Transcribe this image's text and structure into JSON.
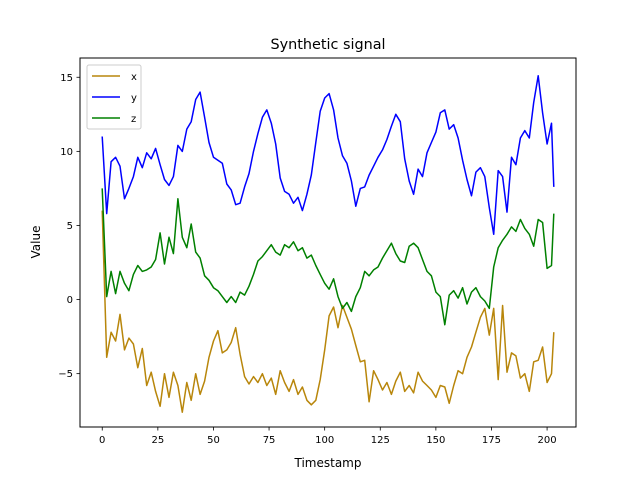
{
  "chart_data": {
    "type": "line",
    "title": "Synthetic signal",
    "xlabel": "Timestamp",
    "ylabel": "Value",
    "xlim": [
      -10,
      213
    ],
    "ylim": [
      -8.6,
      16.3
    ],
    "xticks": [
      0,
      25,
      50,
      75,
      100,
      125,
      150,
      175,
      200
    ],
    "yticks": [
      -5,
      0,
      5,
      10,
      15
    ],
    "grid": false,
    "legend": "upper-left",
    "series": [
      {
        "name": "x",
        "color": "#b8860b",
        "x": [
          0,
          2,
          4,
          6,
          8,
          10,
          12,
          14,
          16,
          18,
          20,
          22,
          24,
          26,
          28,
          30,
          32,
          34,
          36,
          38,
          40,
          42,
          44,
          46,
          48,
          50,
          52,
          54,
          56,
          58,
          60,
          62,
          64,
          66,
          68,
          70,
          72,
          74,
          76,
          78,
          80,
          82,
          84,
          86,
          88,
          90,
          92,
          94,
          96,
          98,
          100,
          102,
          104,
          106,
          108,
          110,
          112,
          114,
          116,
          118,
          120,
          122,
          124,
          126,
          128,
          130,
          132,
          134,
          136,
          138,
          140,
          142,
          144,
          146,
          148,
          150,
          152,
          154,
          156,
          158,
          160,
          162,
          164,
          166,
          168,
          170,
          172,
          174,
          176,
          178,
          180,
          182,
          184,
          186,
          188,
          190,
          192,
          194,
          196,
          198,
          200,
          202,
          203
        ],
        "values": [
          6.0,
          -3.9,
          -2.2,
          -2.8,
          -1.0,
          -3.4,
          -2.6,
          -3.0,
          -4.6,
          -3.3,
          -5.8,
          -4.9,
          -6.2,
          -7.2,
          -5.0,
          -6.6,
          -4.9,
          -5.8,
          -7.6,
          -5.6,
          -6.8,
          -5.0,
          -6.4,
          -5.5,
          -3.9,
          -2.8,
          -2.1,
          -3.6,
          -3.4,
          -2.9,
          -1.9,
          -3.7,
          -5.2,
          -5.7,
          -5.2,
          -5.6,
          -5.0,
          -5.8,
          -5.3,
          -6.4,
          -4.8,
          -5.6,
          -6.2,
          -5.4,
          -6.4,
          -5.9,
          -6.8,
          -7.1,
          -6.8,
          -5.4,
          -3.4,
          -1.1,
          -0.5,
          -1.9,
          -0.4,
          -1.2,
          -2.0,
          -3.1,
          -4.2,
          -4.1,
          -6.9,
          -4.8,
          -5.4,
          -6.1,
          -5.6,
          -6.4,
          -5.5,
          -4.9,
          -6.2,
          -5.8,
          -6.3,
          -4.9,
          -5.5,
          -5.8,
          -6.1,
          -6.6,
          -5.8,
          -5.9,
          -7.0,
          -5.8,
          -4.8,
          -5.0,
          -3.9,
          -3.2,
          -2.2,
          -1.2,
          -0.6,
          -2.4,
          -0.6,
          -5.4,
          -0.4,
          -4.9,
          -3.6,
          -3.8,
          -5.3,
          -5.0,
          -6.2,
          -4.2,
          -4.1,
          -3.2,
          -5.6,
          -5.0,
          -2.2
        ]
      },
      {
        "name": "y",
        "color": "#0000ff",
        "x": [
          0,
          2,
          4,
          6,
          8,
          10,
          12,
          14,
          16,
          18,
          20,
          22,
          24,
          26,
          28,
          30,
          32,
          34,
          36,
          38,
          40,
          42,
          44,
          46,
          48,
          50,
          52,
          54,
          56,
          58,
          60,
          62,
          64,
          66,
          68,
          70,
          72,
          74,
          76,
          78,
          80,
          82,
          84,
          86,
          88,
          90,
          92,
          94,
          96,
          98,
          100,
          102,
          104,
          106,
          108,
          110,
          112,
          114,
          116,
          118,
          120,
          122,
          124,
          126,
          128,
          130,
          132,
          134,
          136,
          138,
          140,
          142,
          144,
          146,
          148,
          150,
          152,
          154,
          156,
          158,
          160,
          162,
          164,
          166,
          168,
          170,
          172,
          174,
          176,
          178,
          180,
          182,
          184,
          186,
          188,
          190,
          192,
          194,
          196,
          198,
          200,
          202,
          203
        ],
        "values": [
          11.0,
          5.8,
          9.3,
          9.6,
          9.0,
          6.8,
          7.5,
          8.3,
          9.6,
          8.9,
          9.9,
          9.5,
          10.2,
          9.1,
          8.1,
          7.7,
          8.3,
          10.4,
          10.0,
          11.5,
          12.0,
          13.5,
          14.0,
          12.3,
          10.6,
          9.6,
          9.4,
          9.2,
          7.8,
          7.4,
          6.4,
          6.5,
          7.6,
          8.5,
          10.0,
          11.2,
          12.3,
          12.8,
          11.9,
          10.5,
          8.2,
          7.3,
          7.1,
          6.5,
          6.9,
          6.0,
          7.1,
          8.4,
          10.6,
          12.7,
          13.6,
          13.9,
          12.8,
          10.9,
          9.7,
          9.2,
          8.0,
          6.3,
          7.5,
          7.6,
          8.4,
          9.0,
          9.6,
          10.1,
          10.8,
          11.7,
          12.5,
          12.0,
          9.5,
          8.0,
          7.1,
          8.8,
          8.3,
          9.9,
          10.6,
          11.3,
          12.6,
          12.8,
          11.5,
          11.8,
          10.9,
          9.4,
          8.1,
          7.0,
          8.6,
          8.9,
          8.3,
          6.2,
          4.4,
          8.7,
          8.3,
          5.9,
          9.6,
          9.1,
          10.9,
          11.4,
          10.9,
          13.3,
          15.1,
          12.6,
          10.5,
          11.9,
          7.6
        ]
      },
      {
        "name": "z",
        "color": "#008000",
        "x": [
          0,
          2,
          4,
          6,
          8,
          10,
          12,
          14,
          16,
          18,
          20,
          22,
          24,
          26,
          28,
          30,
          32,
          34,
          36,
          38,
          40,
          42,
          44,
          46,
          48,
          50,
          52,
          54,
          56,
          58,
          60,
          62,
          64,
          66,
          68,
          70,
          72,
          74,
          76,
          78,
          80,
          82,
          84,
          86,
          88,
          90,
          92,
          94,
          96,
          98,
          100,
          102,
          104,
          106,
          108,
          110,
          112,
          114,
          116,
          118,
          120,
          122,
          124,
          126,
          128,
          130,
          132,
          134,
          136,
          138,
          140,
          142,
          144,
          146,
          148,
          150,
          152,
          154,
          156,
          158,
          160,
          162,
          164,
          166,
          168,
          170,
          172,
          174,
          176,
          178,
          180,
          182,
          184,
          186,
          188,
          190,
          192,
          194,
          196,
          198,
          200,
          202,
          203
        ],
        "values": [
          7.5,
          0.2,
          1.9,
          0.4,
          1.9,
          1.1,
          0.6,
          1.7,
          2.3,
          1.9,
          2.0,
          2.2,
          2.7,
          4.5,
          2.4,
          4.2,
          3.1,
          6.8,
          4.2,
          3.5,
          5.1,
          3.2,
          2.8,
          1.6,
          1.3,
          0.8,
          0.6,
          0.2,
          -0.2,
          0.2,
          -0.2,
          0.5,
          0.3,
          0.9,
          1.7,
          2.6,
          2.9,
          3.3,
          3.7,
          3.2,
          3.0,
          3.7,
          3.5,
          3.9,
          3.3,
          3.5,
          2.8,
          3.0,
          2.3,
          1.7,
          1.1,
          0.7,
          1.4,
          0.2,
          -0.6,
          -0.2,
          -0.8,
          0.2,
          0.8,
          1.9,
          1.6,
          2.0,
          2.2,
          2.8,
          3.3,
          3.8,
          3.1,
          2.6,
          2.5,
          3.6,
          3.8,
          3.5,
          2.7,
          1.9,
          1.6,
          0.5,
          0.2,
          -1.7,
          0.3,
          0.6,
          0.1,
          0.8,
          -0.3,
          0.5,
          0.8,
          0.2,
          -0.1,
          -0.6,
          2.2,
          3.5,
          4.0,
          4.4,
          4.9,
          4.6,
          5.4,
          4.8,
          4.4,
          3.6,
          5.4,
          5.2,
          2.1,
          2.3,
          5.8
        ]
      }
    ]
  }
}
